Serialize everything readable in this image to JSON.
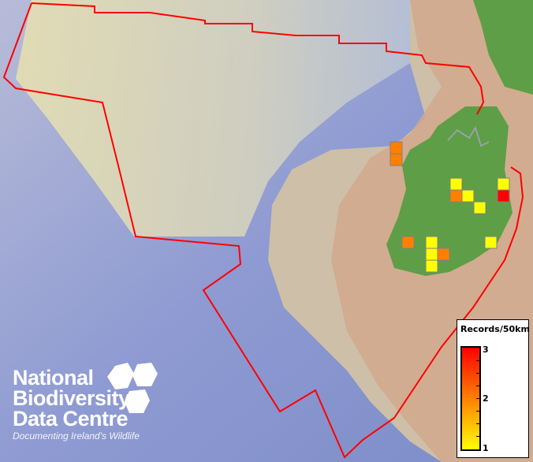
{
  "map": {
    "colors": {
      "boundary": "#ff0000",
      "ireland": "#5e9e46",
      "britain": "#d2a88c",
      "shelf": "#e3dcae",
      "deep_sea": "#8c98d0",
      "cell_border": "#808080"
    },
    "records": [
      {
        "value": 2,
        "color": "#ff8000"
      },
      {
        "value": 2,
        "color": "#ff8000"
      },
      {
        "value": 1,
        "color": "#ffff00"
      },
      {
        "value": 2,
        "color": "#ff8000"
      },
      {
        "value": 1,
        "color": "#ffff00"
      },
      {
        "value": 1,
        "color": "#ffff00"
      },
      {
        "value": 1,
        "color": "#ffff00"
      },
      {
        "value": 3,
        "color": "#ff0000"
      },
      {
        "value": 2,
        "color": "#ff8000"
      },
      {
        "value": 1,
        "color": "#ffff00"
      },
      {
        "value": 1,
        "color": "#ffff00"
      },
      {
        "value": 2,
        "color": "#ff8000"
      },
      {
        "value": 1,
        "color": "#ffff00"
      },
      {
        "value": 1,
        "color": "#ffff00"
      }
    ]
  },
  "legend": {
    "title": "Records/50km",
    "max_label": "3",
    "mid_label": "2",
    "min_label": "1",
    "colors": [
      "#ff0000",
      "#ff8000",
      "#ffff00"
    ]
  },
  "logo": {
    "line1": "National",
    "line2": "Biodiversity",
    "line3": "Data Centre",
    "tagline": "Documenting Ireland's Wildlife"
  }
}
